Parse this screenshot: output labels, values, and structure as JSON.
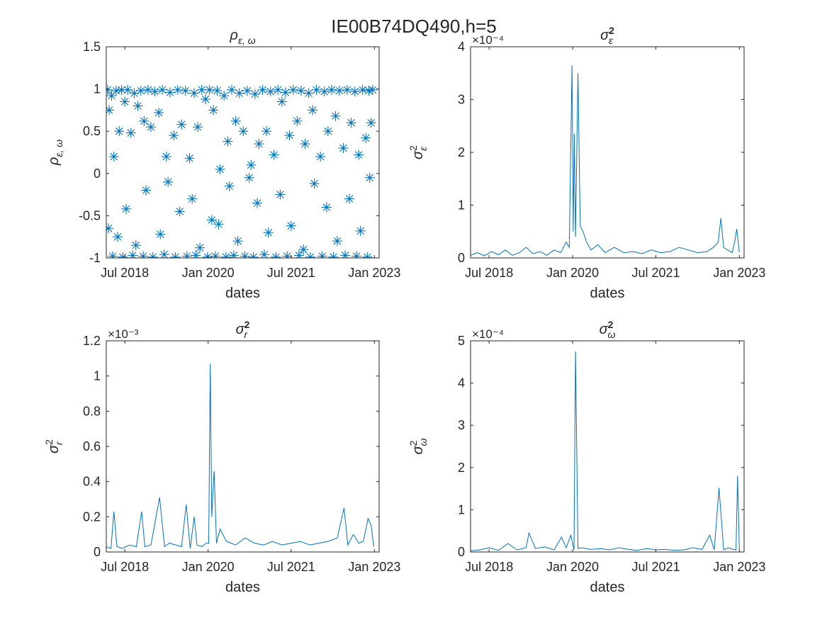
{
  "figure": {
    "suptitle": "IE00B74DQ490,h=5"
  },
  "chart_data": [
    {
      "type": "scatter",
      "title": "ρ_{ε, ω}",
      "xlabel": "dates",
      "ylabel": "ρ_{ε, ω}",
      "xlim": [
        "2018-03-01",
        "2023-02-01"
      ],
      "ylim": [
        -1,
        1.5
      ],
      "xticks": [
        "Jul 2018",
        "Jan 2020",
        "Jul 2021",
        "Jan 2023"
      ],
      "yticks": [
        "-1",
        "-0.5",
        "0",
        "0.5",
        "1",
        "1.5"
      ],
      "exponent": "",
      "color": "#0072BD",
      "marker": "asterisk",
      "series": [
        {
          "x": [
            "2018-03-10",
            "2018-03-20",
            "2018-04-05",
            "2018-04-20",
            "2018-05-05",
            "2018-05-25",
            "2018-06-10",
            "2018-07-01",
            "2018-07-20",
            "2018-08-10",
            "2018-09-01",
            "2018-09-25",
            "2018-10-15",
            "2018-11-05",
            "2018-12-01",
            "2018-12-20",
            "2019-01-15",
            "2019-02-10",
            "2019-03-05",
            "2019-04-01",
            "2019-04-25",
            "2019-05-20",
            "2019-06-15",
            "2019-07-10",
            "2019-08-05",
            "2019-09-01",
            "2019-10-01",
            "2019-10-25",
            "2019-11-20",
            "2019-12-15",
            "2020-01-10",
            "2020-02-05",
            "2020-03-01",
            "2020-03-20",
            "2020-04-15",
            "2020-05-10",
            "2020-06-05",
            "2020-07-01",
            "2020-07-25",
            "2020-08-20",
            "2020-09-15",
            "2020-10-10",
            "2020-11-05",
            "2020-12-01",
            "2020-12-25",
            "2021-01-20",
            "2021-02-15",
            "2021-03-10",
            "2021-04-05",
            "2021-05-01",
            "2021-05-25",
            "2021-06-20",
            "2021-07-15",
            "2021-08-10",
            "2021-09-05",
            "2021-10-01",
            "2021-10-25",
            "2021-11-20",
            "2021-12-15",
            "2022-01-10",
            "2022-02-05",
            "2022-03-01",
            "2022-03-25",
            "2022-04-20",
            "2022-05-15",
            "2022-06-10",
            "2022-07-05",
            "2022-08-01",
            "2022-08-25",
            "2022-09-20",
            "2022-10-15",
            "2022-11-05",
            "2022-11-25",
            "2022-12-10",
            "2022-12-20",
            "2018-04-12",
            "2018-06-18",
            "2018-08-22",
            "2018-10-30",
            "2019-01-02",
            "2019-03-18",
            "2019-05-30",
            "2019-08-14",
            "2019-10-12",
            "2019-12-28",
            "2020-02-18",
            "2020-04-28",
            "2020-06-18",
            "2020-08-30",
            "2020-10-25",
            "2021-01-05",
            "2021-03-22",
            "2021-06-05",
            "2021-08-22",
            "2021-11-05",
            "2022-01-22",
            "2022-04-05",
            "2022-06-22",
            "2022-09-05",
            "2022-11-15",
            "2018-03-15",
            "2018-05-15",
            "2018-07-10",
            "2018-09-12",
            "2018-11-18",
            "2019-02-20",
            "2019-04-12",
            "2019-06-28",
            "2019-09-18",
            "2019-11-08",
            "2020-01-25",
            "2020-03-10",
            "2020-05-20",
            "2020-07-15",
            "2020-09-28",
            "2020-11-20",
            "2021-02-01",
            "2021-04-20",
            "2021-07-01",
            "2021-09-20",
            "2021-12-01",
            "2022-02-20",
            "2022-05-01",
            "2022-07-20",
            "2022-10-01",
            "2022-12-01"
          ],
          "y": [
            0.99,
            0.75,
            0.92,
            0.2,
            0.98,
            0.5,
            0.99,
            0.85,
            0.99,
            0.48,
            0.95,
            0.8,
            0.98,
            0.62,
            0.99,
            0.55,
            0.97,
            0.72,
            0.99,
            0.2,
            0.96,
            0.45,
            0.99,
            0.58,
            0.98,
            0.18,
            0.95,
            0.55,
            0.99,
            0.88,
            0.99,
            0.75,
            0.98,
            0.05,
            0.92,
            0.38,
            0.99,
            0.62,
            0.95,
            0.5,
            0.98,
            0.1,
            0.94,
            0.35,
            0.99,
            0.5,
            0.97,
            0.22,
            0.99,
            0.85,
            0.96,
            0.45,
            0.99,
            0.62,
            0.98,
            0.35,
            0.95,
            0.75,
            0.99,
            0.2,
            0.97,
            0.5,
            0.99,
            0.68,
            0.98,
            0.3,
            0.99,
            0.6,
            0.97,
            0.22,
            0.99,
            0.42,
            0.98,
            0.6,
            0.99,
            -0.98,
            -0.99,
            -0.97,
            -0.98,
            -0.99,
            -0.96,
            -0.99,
            -0.98,
            -0.97,
            -0.99,
            -0.98,
            -0.99,
            -0.97,
            -0.98,
            -0.99,
            -0.96,
            -0.99,
            -0.98,
            -0.97,
            -0.99,
            -0.98,
            -0.99,
            -0.97,
            -0.98,
            -0.99,
            -0.65,
            -0.75,
            -0.42,
            -0.85,
            -0.2,
            -0.72,
            -0.1,
            -0.45,
            -0.3,
            -0.88,
            -0.55,
            -0.6,
            -0.15,
            -0.8,
            -0.05,
            -0.35,
            -0.7,
            -0.25,
            -0.62,
            -0.9,
            -0.12,
            -0.4,
            -0.8,
            -0.3,
            -0.68,
            -0.05
          ]
        }
      ]
    },
    {
      "type": "line",
      "title": "σ²_ε",
      "xlabel": "dates",
      "ylabel": "σ²_ε",
      "xlim": [
        "2018-03-01",
        "2023-02-01"
      ],
      "ylim": [
        0,
        4
      ],
      "xticks": [
        "Jul 2018",
        "Jan 2020",
        "Jul 2021",
        "Jan 2023"
      ],
      "yticks": [
        "0",
        "1",
        "2",
        "3",
        "4"
      ],
      "exponent": "×10⁻⁴",
      "color": "#0072BD",
      "series": [
        {
          "x": [
            "2018-03-01",
            "2018-04-15",
            "2018-06-01",
            "2018-07-15",
            "2018-09-01",
            "2018-10-15",
            "2018-12-01",
            "2019-01-15",
            "2019-03-01",
            "2019-04-15",
            "2019-06-01",
            "2019-07-15",
            "2019-09-01",
            "2019-10-15",
            "2019-11-20",
            "2019-12-10",
            "2019-12-28",
            "2020-01-05",
            "2020-01-12",
            "2020-01-20",
            "2020-02-05",
            "2020-02-20",
            "2020-03-10",
            "2020-04-01",
            "2020-05-01",
            "2020-06-15",
            "2020-08-01",
            "2020-10-01",
            "2020-12-01",
            "2021-02-01",
            "2021-04-01",
            "2021-06-01",
            "2021-08-01",
            "2021-10-01",
            "2021-12-01",
            "2022-02-01",
            "2022-04-01",
            "2022-06-01",
            "2022-07-15",
            "2022-08-15",
            "2022-09-01",
            "2022-09-20",
            "2022-10-15",
            "2022-11-15",
            "2022-12-01",
            "2022-12-15",
            "2023-01-01"
          ],
          "y": [
            0.05,
            0.1,
            0.04,
            0.12,
            0.06,
            0.15,
            0.05,
            0.1,
            0.2,
            0.08,
            0.12,
            0.05,
            0.15,
            0.1,
            0.3,
            0.2,
            3.65,
            0.5,
            2.35,
            0.4,
            3.5,
            0.6,
            0.5,
            0.3,
            0.15,
            0.25,
            0.1,
            0.2,
            0.1,
            0.12,
            0.08,
            0.15,
            0.1,
            0.12,
            0.2,
            0.15,
            0.1,
            0.12,
            0.2,
            0.3,
            0.75,
            0.2,
            0.15,
            0.1,
            0.3,
            0.55,
            0.1
          ]
        }
      ]
    },
    {
      "type": "line",
      "title": "σ²_r",
      "xlabel": "dates",
      "ylabel": "σ²_r",
      "xlim": [
        "2018-03-01",
        "2023-02-01"
      ],
      "ylim": [
        0,
        1.2
      ],
      "xticks": [
        "Jul 2018",
        "Jan 2020",
        "Jul 2021",
        "Jan 2023"
      ],
      "yticks": [
        "0",
        "0.2",
        "0.4",
        "0.6",
        "0.8",
        "1",
        "1.2"
      ],
      "exponent": "×10⁻³",
      "color": "#0072BD",
      "series": [
        {
          "x": [
            "2018-03-01",
            "2018-04-01",
            "2018-04-20",
            "2018-05-10",
            "2018-06-15",
            "2018-08-01",
            "2018-09-15",
            "2018-10-20",
            "2018-11-10",
            "2018-12-20",
            "2019-02-15",
            "2019-03-20",
            "2019-04-20",
            "2019-06-01",
            "2019-07-10",
            "2019-08-10",
            "2019-09-05",
            "2019-10-01",
            "2019-10-20",
            "2019-11-20",
            "2019-12-20",
            "2020-01-05",
            "2020-01-15",
            "2020-01-25",
            "2020-02-10",
            "2020-02-25",
            "2020-03-20",
            "2020-05-01",
            "2020-07-01",
            "2020-09-01",
            "2020-11-01",
            "2021-01-01",
            "2021-03-01",
            "2021-05-01",
            "2021-07-01",
            "2021-09-01",
            "2021-11-01",
            "2022-01-01",
            "2022-03-01",
            "2022-05-01",
            "2022-06-15",
            "2022-07-10",
            "2022-08-15",
            "2022-09-20",
            "2022-10-20",
            "2022-11-20",
            "2022-12-10",
            "2022-12-28"
          ],
          "y": [
            0.03,
            0.02,
            0.23,
            0.03,
            0.02,
            0.04,
            0.03,
            0.23,
            0.03,
            0.04,
            0.31,
            0.03,
            0.05,
            0.04,
            0.03,
            0.27,
            0.02,
            0.2,
            0.04,
            0.03,
            0.05,
            0.05,
            1.07,
            0.2,
            0.46,
            0.05,
            0.13,
            0.06,
            0.04,
            0.08,
            0.05,
            0.04,
            0.06,
            0.04,
            0.05,
            0.06,
            0.04,
            0.05,
            0.06,
            0.08,
            0.25,
            0.04,
            0.1,
            0.05,
            0.06,
            0.19,
            0.15,
            0.03
          ]
        }
      ]
    },
    {
      "type": "line",
      "title": "σ²_ω",
      "xlabel": "dates",
      "ylabel": "σ²_ω",
      "xlim": [
        "2018-03-01",
        "2023-02-01"
      ],
      "ylim": [
        0,
        5
      ],
      "xticks": [
        "Jul 2018",
        "Jan 2020",
        "Jul 2021",
        "Jan 2023"
      ],
      "yticks": [
        "0",
        "1",
        "2",
        "3",
        "4",
        "5"
      ],
      "exponent": "×10⁻⁴",
      "color": "#0072BD",
      "series": [
        {
          "x": [
            "2018-03-01",
            "2018-05-01",
            "2018-07-01",
            "2018-09-01",
            "2018-11-01",
            "2019-01-01",
            "2019-03-01",
            "2019-03-20",
            "2019-05-01",
            "2019-07-01",
            "2019-09-01",
            "2019-10-20",
            "2019-11-20",
            "2019-12-20",
            "2020-01-10",
            "2020-01-20",
            "2020-02-05",
            "2020-03-01",
            "2020-05-01",
            "2020-07-01",
            "2020-09-01",
            "2020-11-01",
            "2021-01-01",
            "2021-03-01",
            "2021-05-01",
            "2021-07-01",
            "2021-09-01",
            "2021-11-01",
            "2022-01-01",
            "2022-03-01",
            "2022-05-01",
            "2022-06-20",
            "2022-07-20",
            "2022-08-20",
            "2022-09-20",
            "2022-10-20",
            "2022-11-20",
            "2022-12-10",
            "2022-12-20",
            "2023-01-01"
          ],
          "y": [
            0.03,
            0.05,
            0.1,
            0.04,
            0.2,
            0.05,
            0.1,
            0.45,
            0.08,
            0.12,
            0.05,
            0.35,
            0.1,
            0.4,
            0.05,
            4.75,
            0.08,
            0.1,
            0.06,
            0.08,
            0.05,
            0.1,
            0.06,
            0.04,
            0.08,
            0.05,
            0.06,
            0.04,
            0.05,
            0.1,
            0.06,
            0.4,
            0.05,
            1.52,
            0.05,
            0.1,
            0.06,
            0.05,
            1.8,
            0.05
          ]
        }
      ]
    }
  ]
}
